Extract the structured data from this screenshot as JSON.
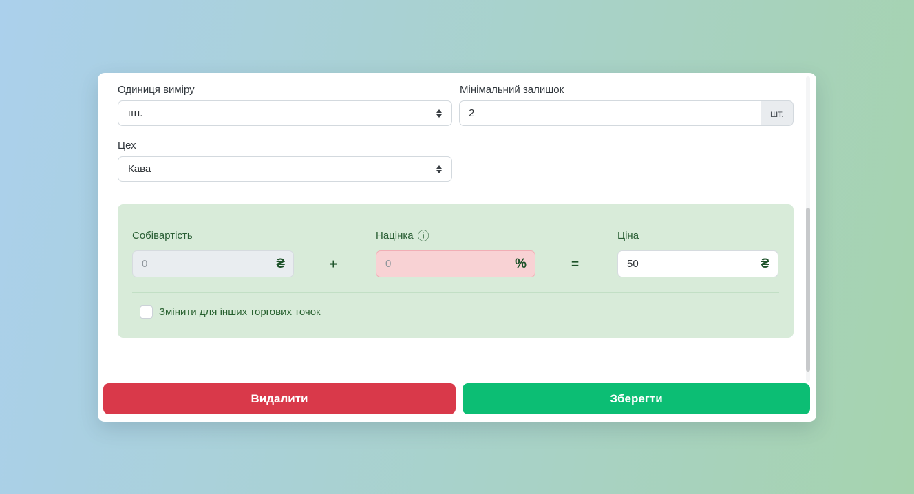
{
  "form": {
    "unit": {
      "label": "Одиниця виміру",
      "value": "шт."
    },
    "min_stock": {
      "label": "Мінімальний залишок",
      "value": "2",
      "suffix": "шт."
    },
    "workshop": {
      "label": "Цех",
      "value": "Кава"
    },
    "pricing": {
      "cost_label": "Собівартість",
      "cost_placeholder": "0",
      "cost_currency": "₴",
      "plus_sign": "+",
      "markup_label": "Націнка",
      "markup_info_icon": "ⓘ",
      "markup_placeholder": "0",
      "markup_suffix": "%",
      "equals_sign": "=",
      "price_label": "Ціна",
      "price_value": "50",
      "price_currency": "₴",
      "checkbox_label": "Змінити для інших торгових точок",
      "checkbox_checked": false
    },
    "delete_button": "Видалити",
    "save_button": "Зберегти"
  },
  "colors": {
    "background_left": "#abd0ec",
    "background_right": "#a6d3ae",
    "panel_green_bg": "#d8ebd9",
    "panel_label_green": "#2a5f35",
    "accent_green_dark": "#1d5229",
    "markup_invalid_bg": "#f8d2d4",
    "markup_invalid_border": "#f1aeb5",
    "danger_red": "#d9394a",
    "success_green": "#0cbe74"
  }
}
